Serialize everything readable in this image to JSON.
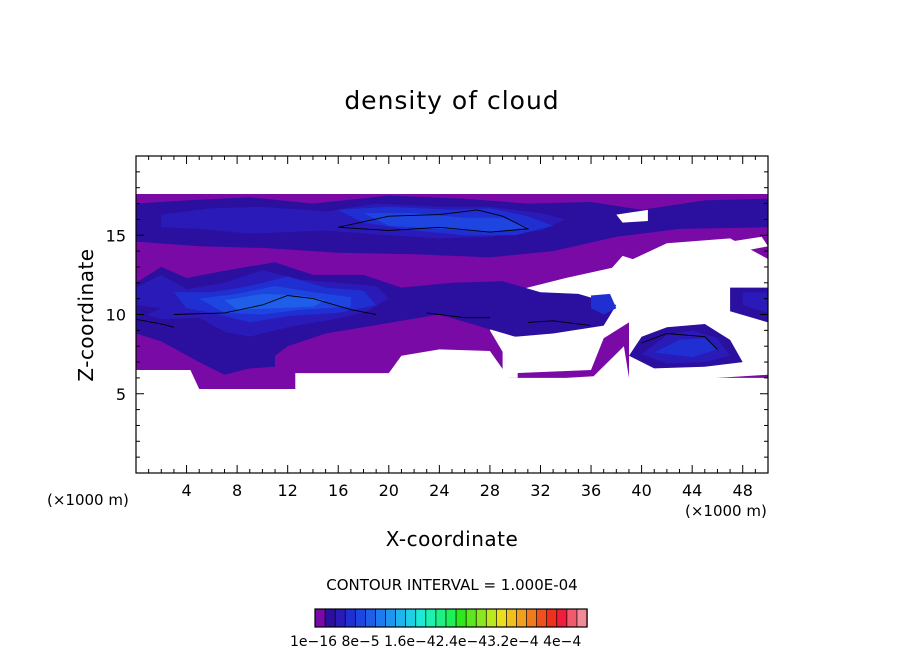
{
  "chart_data": {
    "type": "heatmap",
    "title": "density of cloud",
    "xlabel": "X-coordinate",
    "ylabel": "Z-coordinate",
    "x_unit_label": "(×1000 m)",
    "xlim": [
      0,
      50
    ],
    "ylim": [
      0,
      20
    ],
    "x_ticks": [
      4,
      8,
      12,
      16,
      20,
      24,
      28,
      32,
      36,
      40,
      44,
      48
    ],
    "y_ticks": [
      5,
      10,
      15
    ],
    "contour_interval_text": "CONTOUR INTERVAL = 1.000E-04",
    "colorbar": {
      "colors": [
        "#7a0aa6",
        "#2b0f9e",
        "#2a1ab8",
        "#1f2fd1",
        "#1f45e0",
        "#1f5ee8",
        "#1e7aee",
        "#1e96f0",
        "#1eb4ee",
        "#1ecfe6",
        "#1ee8d6",
        "#1ef0b0",
        "#1ef084",
        "#1ef05a",
        "#2ce81e",
        "#5ce81e",
        "#8ce81e",
        "#bbe81e",
        "#e8e01e",
        "#f0c01e",
        "#f0a01e",
        "#f07a1e",
        "#f0501e",
        "#f0301e",
        "#f01e3c",
        "#f05a6a",
        "#f08a96"
      ],
      "tick_labels": [
        "1e-16",
        "8e-5",
        "1.6e-4",
        "2.4e-4",
        "3.2e-4",
        "4e-4"
      ],
      "label_text": "1e−16 8e−5 1.6e−42.4e−43.2e−4 4e−4"
    },
    "regions": [
      {
        "level": 0,
        "points": [
          [
            0,
            17.6
          ],
          [
            50,
            17.6
          ],
          [
            50,
            13.5
          ],
          [
            47,
            14.8
          ],
          [
            42,
            14.5
          ],
          [
            38,
            13.0
          ],
          [
            34,
            12.3
          ],
          [
            30,
            11.5
          ],
          [
            28,
            9.0
          ],
          [
            30,
            6.3
          ],
          [
            36,
            6.5
          ],
          [
            37,
            8.5
          ],
          [
            39,
            9.5
          ],
          [
            39,
            6.0
          ],
          [
            44,
            5.9
          ],
          [
            50,
            6.2
          ],
          [
            50,
            2.0
          ],
          [
            0,
            2.0
          ]
        ]
      },
      {
        "level": 1,
        "points": [
          [
            0,
            17.0
          ],
          [
            4,
            17.2
          ],
          [
            9,
            17.4
          ],
          [
            14,
            17.0
          ],
          [
            20,
            17.5
          ],
          [
            26,
            17.3
          ],
          [
            31,
            17.0
          ],
          [
            36,
            17.1
          ],
          [
            40,
            16.6
          ],
          [
            45,
            17.2
          ],
          [
            50,
            17.3
          ],
          [
            50,
            15.5
          ],
          [
            43,
            15.4
          ],
          [
            38,
            14.9
          ],
          [
            33,
            14.0
          ],
          [
            28,
            13.6
          ],
          [
            22,
            13.8
          ],
          [
            16,
            13.9
          ],
          [
            10,
            14.2
          ],
          [
            5,
            14.3
          ],
          [
            0,
            14.6
          ]
        ]
      },
      {
        "level": 2,
        "points": [
          [
            2,
            16.3
          ],
          [
            6,
            16.7
          ],
          [
            10,
            16.8
          ],
          [
            15,
            16.5
          ],
          [
            19,
            17.0
          ],
          [
            24,
            16.8
          ],
          [
            28,
            16.8
          ],
          [
            32,
            16.4
          ],
          [
            34,
            16.0
          ],
          [
            32,
            15.3
          ],
          [
            28,
            14.9
          ],
          [
            24,
            14.8
          ],
          [
            20,
            15.0
          ],
          [
            15,
            15.3
          ],
          [
            9,
            15.1
          ],
          [
            5,
            15.4
          ],
          [
            2,
            15.5
          ]
        ]
      },
      {
        "level": 3,
        "points": [
          [
            16,
            16.6
          ],
          [
            20,
            16.8
          ],
          [
            25,
            16.6
          ],
          [
            28,
            16.7
          ],
          [
            31,
            16.2
          ],
          [
            33,
            15.6
          ],
          [
            30,
            15.0
          ],
          [
            26,
            15.0
          ],
          [
            22,
            15.3
          ],
          [
            18,
            15.8
          ]
        ]
      },
      {
        "level": 4,
        "points": [
          [
            18,
            16.4
          ],
          [
            22,
            16.4
          ],
          [
            26,
            16.1
          ],
          [
            29,
            16.1
          ],
          [
            31,
            15.5
          ],
          [
            28,
            15.2
          ],
          [
            24,
            15.4
          ],
          [
            20,
            15.6
          ]
        ]
      },
      {
        "level": 1,
        "points": [
          [
            0,
            12.0
          ],
          [
            2,
            13.0
          ],
          [
            4,
            12.3
          ],
          [
            6,
            12.6
          ],
          [
            8,
            12.9
          ],
          [
            11,
            13.3
          ],
          [
            14,
            12.5
          ],
          [
            18,
            12.5
          ],
          [
            21,
            11.7
          ],
          [
            25,
            12.0
          ],
          [
            29,
            12.1
          ],
          [
            32,
            11.4
          ],
          [
            35,
            11.3
          ],
          [
            38,
            10.6
          ],
          [
            37,
            9.3
          ],
          [
            33,
            8.8
          ],
          [
            30,
            8.6
          ],
          [
            27,
            9.3
          ],
          [
            24,
            10.0
          ],
          [
            21,
            9.6
          ],
          [
            18,
            9.2
          ],
          [
            15,
            8.8
          ],
          [
            12,
            8.0
          ],
          [
            10,
            6.8
          ],
          [
            7,
            6.2
          ],
          [
            5,
            7.0
          ],
          [
            2,
            8.3
          ],
          [
            0,
            8.8
          ]
        ]
      },
      {
        "level": 2,
        "points": [
          [
            0,
            11.7
          ],
          [
            2,
            12.5
          ],
          [
            4,
            11.6
          ],
          [
            7,
            12.0
          ],
          [
            10,
            12.8
          ],
          [
            13,
            12.2
          ],
          [
            16,
            12.0
          ],
          [
            19,
            11.8
          ],
          [
            20,
            11.0
          ],
          [
            18,
            10.1
          ],
          [
            15,
            9.6
          ],
          [
            12,
            9.2
          ],
          [
            9,
            8.6
          ],
          [
            7,
            8.9
          ],
          [
            5,
            9.8
          ],
          [
            2,
            9.7
          ],
          [
            0,
            10.2
          ]
        ]
      },
      {
        "level": 3,
        "points": [
          [
            3,
            11.4
          ],
          [
            6,
            11.4
          ],
          [
            9,
            11.8
          ],
          [
            12,
            12.4
          ],
          [
            15,
            11.7
          ],
          [
            18,
            11.5
          ],
          [
            19,
            10.6
          ],
          [
            16,
            10.1
          ],
          [
            12,
            9.9
          ],
          [
            9,
            9.5
          ],
          [
            6,
            10.1
          ],
          [
            4,
            10.4
          ]
        ]
      },
      {
        "level": 4,
        "points": [
          [
            5,
            11.0
          ],
          [
            8,
            11.3
          ],
          [
            11,
            11.8
          ],
          [
            14,
            11.4
          ],
          [
            17,
            11.1
          ],
          [
            17,
            10.5
          ],
          [
            13,
            10.3
          ],
          [
            10,
            10.0
          ],
          [
            7,
            10.1
          ]
        ]
      },
      {
        "level": 5,
        "points": [
          [
            7,
            10.9
          ],
          [
            10,
            11.3
          ],
          [
            13,
            11.2
          ],
          [
            15,
            10.9
          ],
          [
            14,
            10.5
          ],
          [
            11,
            10.4
          ],
          [
            8,
            10.3
          ]
        ]
      },
      {
        "level": 1,
        "points": [
          [
            0,
            9.7
          ],
          [
            2,
            10.4
          ],
          [
            0,
            10.6
          ]
        ]
      },
      {
        "level": 1,
        "points": [
          [
            7,
            7.8
          ],
          [
            9,
            8.1
          ],
          [
            11,
            7.6
          ],
          [
            11,
            6.7
          ],
          [
            9,
            6.6
          ],
          [
            7,
            6.9
          ]
        ]
      },
      {
        "level": 1,
        "points": [
          [
            39,
            7.4
          ],
          [
            40,
            8.6
          ],
          [
            42,
            9.2
          ],
          [
            45,
            9.4
          ],
          [
            47,
            8.4
          ],
          [
            48,
            7.0
          ],
          [
            45,
            6.7
          ],
          [
            41,
            6.6
          ]
        ]
      },
      {
        "level": 2,
        "points": [
          [
            40,
            7.5
          ],
          [
            42,
            8.7
          ],
          [
            44,
            9.0
          ],
          [
            46,
            8.5
          ],
          [
            47,
            7.4
          ],
          [
            45,
            7.0
          ],
          [
            42,
            6.9
          ]
        ]
      },
      {
        "level": 3,
        "points": [
          [
            41,
            7.6
          ],
          [
            43,
            8.4
          ],
          [
            45,
            8.5
          ],
          [
            46,
            7.8
          ],
          [
            44,
            7.3
          ]
        ]
      },
      {
        "level": 1,
        "points": [
          [
            47,
            11.7
          ],
          [
            50,
            11.7
          ],
          [
            50,
            9.5
          ],
          [
            47,
            10.2
          ]
        ]
      },
      {
        "level": 2,
        "points": [
          [
            48,
            11.4
          ],
          [
            50,
            11.4
          ],
          [
            50,
            10.1
          ],
          [
            48,
            10.6
          ]
        ]
      },
      {
        "level": 3,
        "points": [
          [
            36,
            11.2
          ],
          [
            37.5,
            11.3
          ],
          [
            38,
            10.4
          ],
          [
            37,
            10.0
          ],
          [
            36,
            10.4
          ]
        ]
      },
      {
        "level": -1,
        "points": [
          [
            38.5,
            13.7
          ],
          [
            40.5,
            13.2
          ],
          [
            39,
            12.8
          ],
          [
            37.5,
            12.8
          ]
        ]
      },
      {
        "level": -1,
        "points": [
          [
            47,
            14.6
          ],
          [
            49.5,
            14.9
          ],
          [
            50,
            14.3
          ],
          [
            48,
            14.0
          ]
        ]
      },
      {
        "level": -1,
        "points": [
          [
            43,
            14.0
          ],
          [
            46,
            14.4
          ],
          [
            47,
            13.8
          ],
          [
            45,
            12.9
          ],
          [
            43,
            13.1
          ]
        ]
      },
      {
        "level": -1,
        "points": [
          [
            38.5,
            12.0
          ],
          [
            41,
            12.2
          ],
          [
            41,
            9.8
          ],
          [
            38.5,
            9.8
          ]
        ]
      },
      {
        "level": -1,
        "points": [
          [
            47.5,
            12.6
          ],
          [
            50,
            12.8
          ],
          [
            50,
            12.0
          ],
          [
            47.5,
            12.0
          ]
        ]
      },
      {
        "level": -1,
        "points": [
          [
            38,
            16.3
          ],
          [
            40.5,
            16.6
          ],
          [
            40.5,
            15.9
          ],
          [
            38.5,
            15.8
          ]
        ]
      },
      {
        "level": -1,
        "points": [
          [
            29,
            8.6
          ],
          [
            30.2,
            8.6
          ],
          [
            30.2,
            6.0
          ],
          [
            29,
            6.0
          ]
        ]
      },
      {
        "level": -1,
        "points": [
          [
            12.6,
            6.3
          ],
          [
            20,
            6.3
          ],
          [
            21,
            7.4
          ],
          [
            24,
            7.8
          ],
          [
            28,
            7.7
          ],
          [
            29.5,
            6.0
          ],
          [
            34,
            6.0
          ],
          [
            36.2,
            6.1
          ],
          [
            38.6,
            8.0
          ],
          [
            39,
            6.0
          ],
          [
            50,
            6.0
          ],
          [
            50,
            0
          ],
          [
            0,
            0
          ],
          [
            0,
            6.5
          ],
          [
            4.3,
            6.5
          ],
          [
            5,
            5.3
          ],
          [
            12.6,
            5.3
          ]
        ]
      }
    ],
    "contour_lines": [
      [
        [
          16,
          15.5
        ],
        [
          20,
          16.2
        ],
        [
          24,
          16.3
        ],
        [
          27,
          16.6
        ],
        [
          29,
          16.2
        ],
        [
          31,
          15.4
        ],
        [
          28,
          15.2
        ],
        [
          24,
          15.5
        ],
        [
          20,
          15.3
        ],
        [
          16,
          15.5
        ]
      ],
      [
        [
          3,
          10.0
        ],
        [
          7,
          10.1
        ],
        [
          10,
          10.6
        ],
        [
          12,
          11.2
        ],
        [
          14,
          11.0
        ],
        [
          17,
          10.3
        ],
        [
          19,
          10.0
        ]
      ],
      [
        [
          40,
          8.2
        ],
        [
          42,
          8.8
        ],
        [
          45,
          8.6
        ],
        [
          46,
          7.8
        ]
      ],
      [
        [
          0,
          9.7
        ],
        [
          2,
          9.4
        ],
        [
          3,
          9.2
        ]
      ],
      [
        [
          23,
          10.1
        ],
        [
          26,
          9.8
        ],
        [
          28,
          9.8
        ]
      ],
      [
        [
          31,
          9.5
        ],
        [
          33,
          9.6
        ],
        [
          36,
          9.3
        ]
      ]
    ]
  }
}
